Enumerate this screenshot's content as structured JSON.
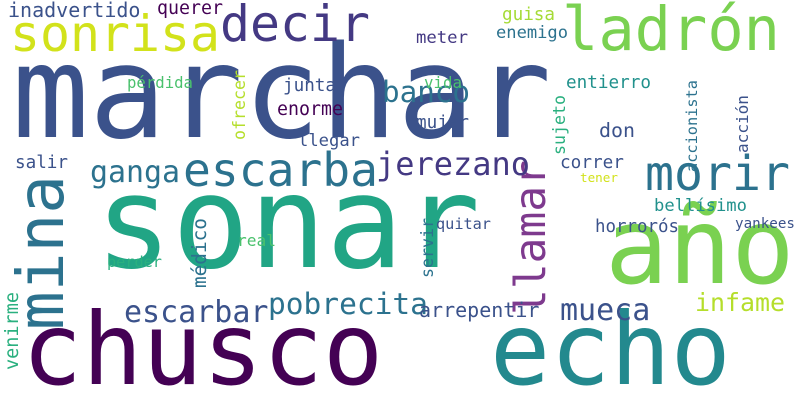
{
  "word_cloud": {
    "words": [
      {
        "text": "marchar",
        "color": "#3b528b"
      },
      {
        "text": "sonar",
        "color": "#21a585"
      },
      {
        "text": "chusco",
        "color": "#440154"
      },
      {
        "text": "echo",
        "color": "#23898e"
      },
      {
        "text": "año",
        "color": "#7ad151"
      },
      {
        "text": "decir",
        "color": "#443983"
      },
      {
        "text": "ladrón",
        "color": "#7ad151"
      },
      {
        "text": "sonrisa",
        "color": "#d2e21b"
      },
      {
        "text": "mina",
        "color": "#2c728e"
      },
      {
        "text": "morir",
        "color": "#2c728e"
      },
      {
        "text": "escarba",
        "color": "#2c728e"
      },
      {
        "text": "llamar",
        "color": "#7e3a8e"
      },
      {
        "text": "jerezano",
        "color": "#443983"
      },
      {
        "text": "banco",
        "color": "#2c728e"
      },
      {
        "text": "pobrecita",
        "color": "#2c728e"
      },
      {
        "text": "escarbar",
        "color": "#3b528b"
      },
      {
        "text": "mueca",
        "color": "#3b528b"
      },
      {
        "text": "infame",
        "color": "#b5de2b"
      },
      {
        "text": "ganga",
        "color": "#2c728e"
      },
      {
        "text": "inadvertido",
        "color": "#3b528b"
      },
      {
        "text": "querer",
        "color": "#440154"
      },
      {
        "text": "meter",
        "color": "#443983"
      },
      {
        "text": "guisa",
        "color": "#a5db36"
      },
      {
        "text": "enemigo",
        "color": "#2c728e"
      },
      {
        "text": "pérdida",
        "color": "#4ac16d"
      },
      {
        "text": "ofrecer",
        "color": "#b5de2b"
      },
      {
        "text": "junta",
        "color": "#3b528b"
      },
      {
        "text": "vida",
        "color": "#4ac16d"
      },
      {
        "text": "entierro",
        "color": "#21918c"
      },
      {
        "text": "sujeto",
        "color": "#2ab07f"
      },
      {
        "text": "accionista",
        "color": "#2c728e"
      },
      {
        "text": "acción",
        "color": "#3b528b"
      },
      {
        "text": "enorme",
        "color": "#440154"
      },
      {
        "text": "mujer",
        "color": "#3b528b"
      },
      {
        "text": "llegar",
        "color": "#3b528b"
      },
      {
        "text": "don",
        "color": "#3b528b"
      },
      {
        "text": "salir",
        "color": "#3b528b"
      },
      {
        "text": "correr",
        "color": "#3b528b"
      },
      {
        "text": "tener",
        "color": "#d2e21b"
      },
      {
        "text": "bellísimo",
        "color": "#21918c"
      },
      {
        "text": "yankees",
        "color": "#3b528b"
      },
      {
        "text": "quitar",
        "color": "#3b528b"
      },
      {
        "text": "horrorós",
        "color": "#3b528b"
      },
      {
        "text": "médico",
        "color": "#2c728e"
      },
      {
        "text": "servir",
        "color": "#2c728e"
      },
      {
        "text": "real",
        "color": "#4ac16d"
      },
      {
        "text": "perder",
        "color": "#2ab07f"
      },
      {
        "text": "venirme",
        "color": "#2ab07f"
      },
      {
        "text": "arrepentir",
        "color": "#3b528b"
      }
    ]
  }
}
